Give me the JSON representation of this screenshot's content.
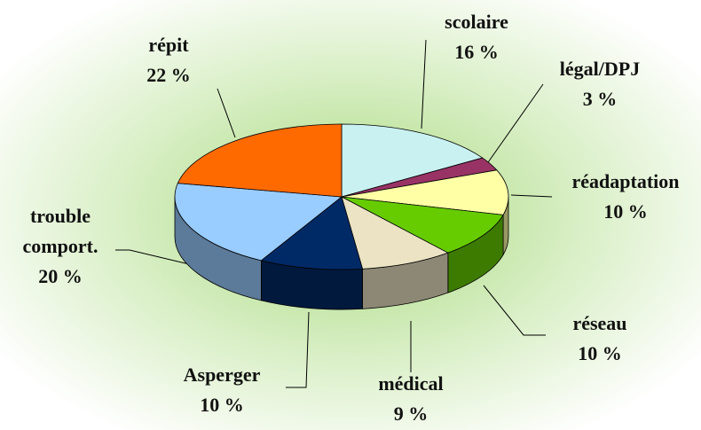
{
  "chart_data": {
    "type": "pie3d",
    "categories": [
      "scolaire",
      "légal/DPJ",
      "réadaptation",
      "réseau",
      "médical",
      "Asperger",
      "trouble comport.",
      "répit"
    ],
    "values": [
      16,
      3,
      10,
      10,
      9,
      10,
      20,
      22
    ],
    "value_labels": [
      "16 %",
      "3 %",
      "10 %",
      "10 %",
      "9 %",
      "10 %",
      "20 %",
      "22 %"
    ],
    "colors": [
      "#c9f1f1",
      "#993366",
      "#ffffa6",
      "#66cc00",
      "#ebe3c3",
      "#002a66",
      "#99ccff",
      "#ff6a00"
    ]
  }
}
